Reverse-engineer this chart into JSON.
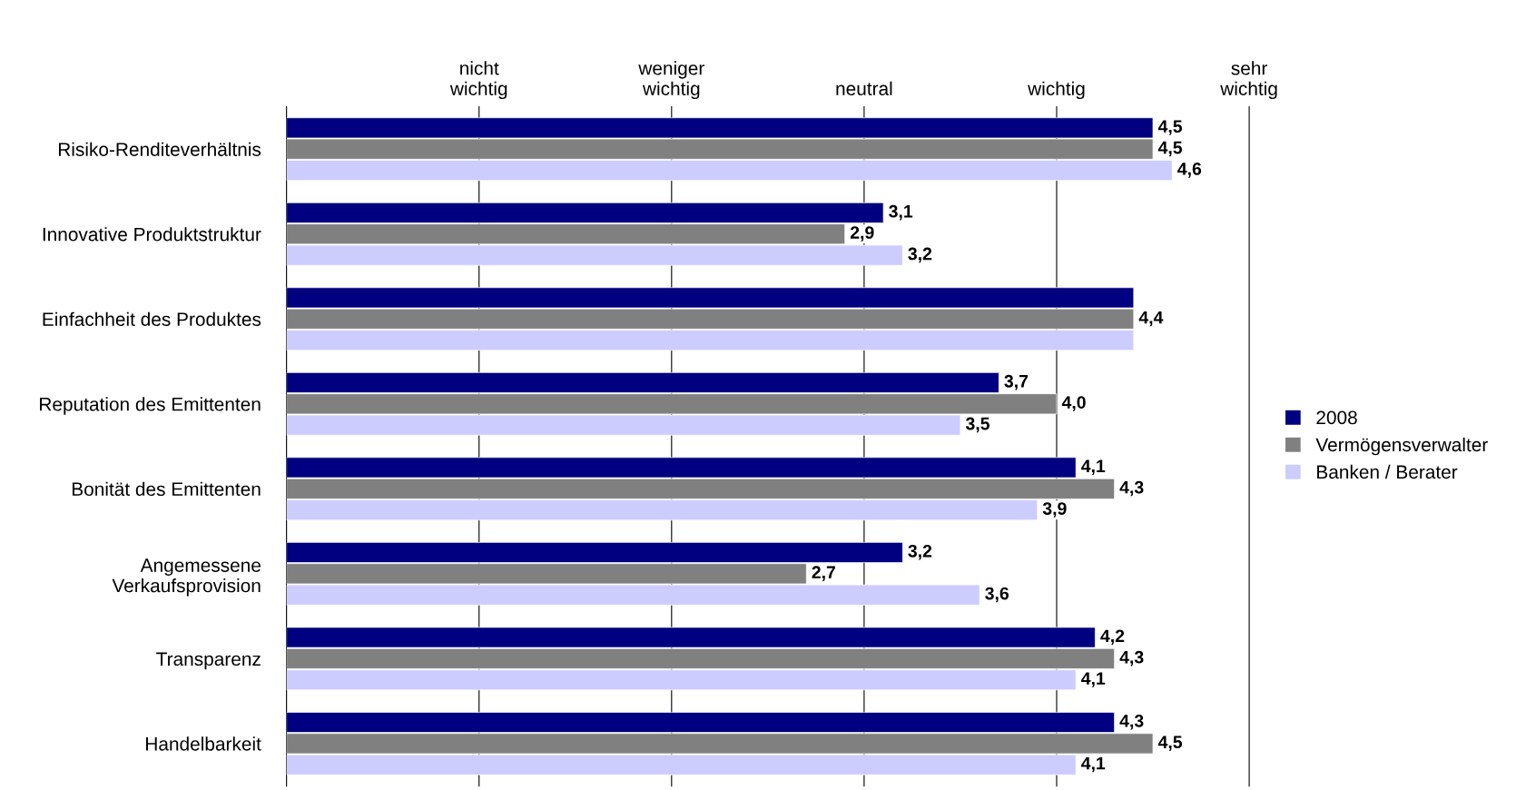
{
  "chart_data": {
    "type": "bar",
    "orientation": "horizontal",
    "categories": [
      "Risiko-Renditeverhältnis",
      "Innovative Produktstruktur",
      "Einfachheit des Produktes",
      "Reputation des Emittenten",
      "Bonität des Emittenten",
      "Angemessene\nVerkaufsprovision",
      "Transparenz",
      "Handelbarkeit"
    ],
    "series": [
      {
        "name": "2008",
        "color": "#000080",
        "values": [
          4.5,
          3.1,
          4.4,
          3.7,
          4.1,
          3.2,
          4.2,
          4.3
        ],
        "value_labels": [
          "4,5",
          "3,1",
          null,
          "3,7",
          "4,1",
          "3,2",
          "4,2",
          "4,3"
        ]
      },
      {
        "name": "Vermögensverwalter",
        "color": "#808080",
        "values": [
          4.5,
          2.9,
          4.4,
          4.0,
          4.3,
          2.7,
          4.3,
          4.5
        ],
        "value_labels": [
          "4,5",
          "2,9",
          "4,4",
          "4,0",
          "4,3",
          "2,7",
          "4,3",
          "4,5"
        ]
      },
      {
        "name": "Banken / Berater",
        "color": "#ccccff",
        "values": [
          4.6,
          3.2,
          4.4,
          3.5,
          3.9,
          3.6,
          4.1,
          4.1
        ],
        "value_labels": [
          "4,6",
          "3,2",
          null,
          "3,5",
          "3,9",
          "3,6",
          "4,1",
          "4,1"
        ]
      }
    ],
    "xlim": [
      0,
      5
    ],
    "ref_lines": [
      {
        "axis": "x",
        "value": 1,
        "label": "nicht\nwichtig",
        "color": "#000000"
      },
      {
        "axis": "x",
        "value": 2,
        "label": "weniger\nwichtig",
        "color": "#000000"
      },
      {
        "axis": "x",
        "value": 3,
        "label": "neutral",
        "color": "#000000"
      },
      {
        "axis": "x",
        "value": 4,
        "label": "wichtig",
        "color": "#000000"
      },
      {
        "axis": "x",
        "value": 5,
        "label": "sehr\nwichtig",
        "color": "#000000"
      }
    ],
    "legend": "right"
  }
}
